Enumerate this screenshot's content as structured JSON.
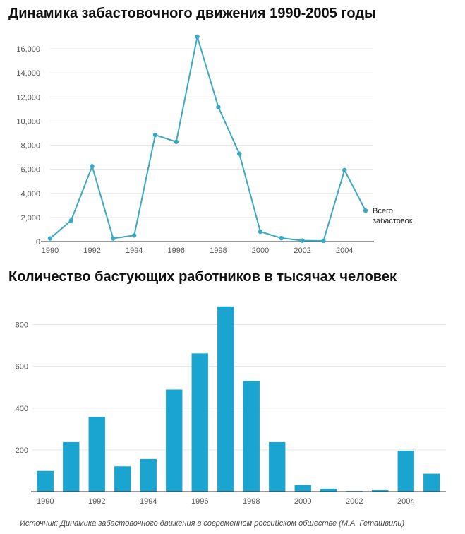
{
  "chart_data": [
    {
      "type": "line",
      "title": "Динамика забастовочного движения 1990-2005 годы",
      "x": [
        1990,
        1991,
        1992,
        1993,
        1994,
        1995,
        1996,
        1997,
        1998,
        1999,
        2000,
        2001,
        2002,
        2003,
        2004,
        2005
      ],
      "series": [
        {
          "name": "Всего забастовок",
          "values": [
            260,
            1750,
            6250,
            260,
            510,
            8850,
            8280,
            17000,
            11160,
            7290,
            820,
            290,
            80,
            60,
            5930,
            2570
          ]
        }
      ],
      "ylim": [
        0,
        17000
      ],
      "yticks": [
        0,
        2000,
        4000,
        6000,
        8000,
        10000,
        12000,
        14000,
        16000
      ],
      "ytick_labels": [
        "0",
        "2,000",
        "4,000",
        "6,000",
        "8,000",
        "10,000",
        "12,000",
        "14,000",
        "16,000"
      ],
      "xticks": [
        1990,
        1992,
        1994,
        1996,
        1998,
        2000,
        2002,
        2004
      ],
      "xtick_labels": [
        "1990",
        "1992",
        "1994",
        "1996",
        "1998",
        "2000",
        "2002",
        "2004"
      ],
      "annotation": {
        "lines": [
          "Всего",
          "забастовок"
        ]
      },
      "grid": true,
      "color": "#3aa9c1"
    },
    {
      "type": "bar",
      "title": "Количество бастующих работников в тысячах человек",
      "categories": [
        1990,
        1991,
        1992,
        1993,
        1994,
        1995,
        1996,
        1997,
        1998,
        1999,
        2000,
        2001,
        2002,
        2003,
        2004,
        2005
      ],
      "values": [
        99,
        237,
        357,
        121,
        156,
        489,
        662,
        887,
        530,
        237,
        32,
        14,
        3,
        7,
        196,
        86
      ],
      "ylim": [
        0,
        900
      ],
      "yticks": [
        200,
        400,
        600,
        800
      ],
      "ytick_labels": [
        "200",
        "400",
        "600",
        "800"
      ],
      "xticks": [
        1990,
        1992,
        1994,
        1996,
        1998,
        2000,
        2002,
        2004
      ],
      "xtick_labels": [
        "1990",
        "1992",
        "1994",
        "1996",
        "1998",
        "2000",
        "2002",
        "2004"
      ],
      "grid": true,
      "color": "#1aa4d0"
    }
  ],
  "source": "Источник: Динамика забастовочного движения в современном российском обществе (М.А. Геташвили)"
}
